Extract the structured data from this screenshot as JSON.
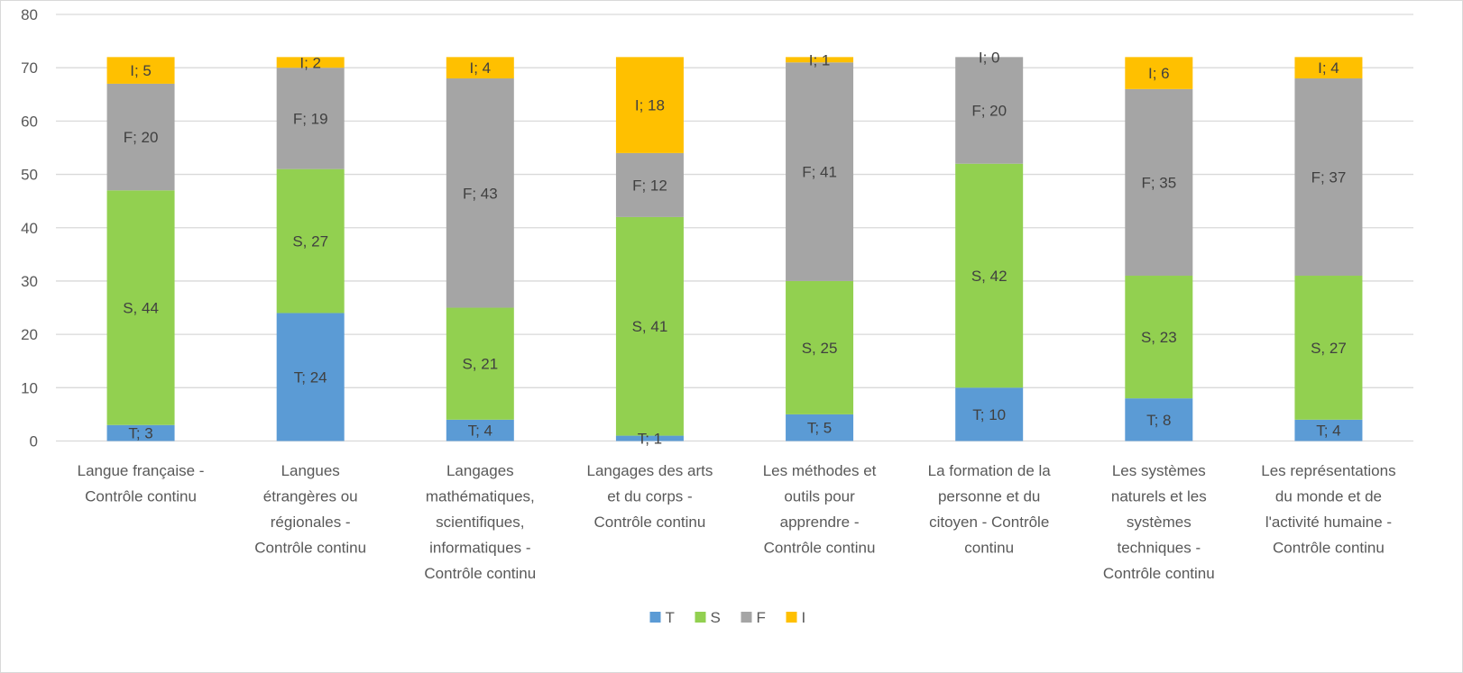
{
  "chart_data": {
    "type": "bar",
    "stacked": true,
    "categories": [
      [
        "Langue française -",
        "Contrôle continu"
      ],
      [
        "Langues",
        "étrangères ou",
        "régionales -",
        "Contrôle continu"
      ],
      [
        "Langages",
        "mathématiques,",
        "scientifiques,",
        "informatiques -",
        "Contrôle continu"
      ],
      [
        "Langages des arts",
        "et du corps -",
        "Contrôle continu"
      ],
      [
        "Les méthodes et",
        "outils pour",
        "apprendre -",
        "Contrôle continu"
      ],
      [
        "La formation de la",
        "personne et du",
        "citoyen - Contrôle",
        "continu"
      ],
      [
        "Les systèmes",
        "naturels et les",
        "systèmes",
        "techniques -",
        "Contrôle continu"
      ],
      [
        "Les représentations",
        "du monde et de",
        "l'activité humaine -",
        "Contrôle continu"
      ]
    ],
    "series": [
      {
        "name": "T",
        "color": "#5b9bd5",
        "values": [
          3,
          24,
          4,
          1,
          5,
          10,
          8,
          4
        ],
        "labels": [
          "T; 3",
          "T; 24",
          "T; 4",
          "T; 1",
          "T; 5",
          "T; 10",
          "T; 8",
          "T; 4"
        ]
      },
      {
        "name": "S",
        "color": "#92d050",
        "values": [
          44,
          27,
          21,
          41,
          25,
          42,
          23,
          27
        ],
        "labels": [
          "S, 44",
          "S, 27",
          "S, 21",
          "S, 41",
          "S, 25",
          "S, 42",
          "S, 23",
          "S, 27"
        ]
      },
      {
        "name": "F",
        "color": "#a5a5a5",
        "values": [
          20,
          19,
          43,
          12,
          41,
          20,
          35,
          37
        ],
        "labels": [
          "F; 20",
          "F; 19",
          "F; 43",
          "F; 12",
          "F; 41",
          "F; 20",
          "F; 35",
          "F; 37"
        ]
      },
      {
        "name": "I",
        "color": "#ffc000",
        "values": [
          5,
          2,
          4,
          18,
          1,
          0,
          6,
          4
        ],
        "labels": [
          "I; 5",
          "I; 2",
          "I; 4",
          "I; 18",
          "I; 1",
          "I; 0",
          "I; 6",
          "I; 4"
        ]
      }
    ],
    "ylim": [
      0,
      80
    ],
    "yticks": [
      0,
      10,
      20,
      30,
      40,
      50,
      60,
      70,
      80
    ],
    "grid": true,
    "legend": "bottom-center"
  }
}
